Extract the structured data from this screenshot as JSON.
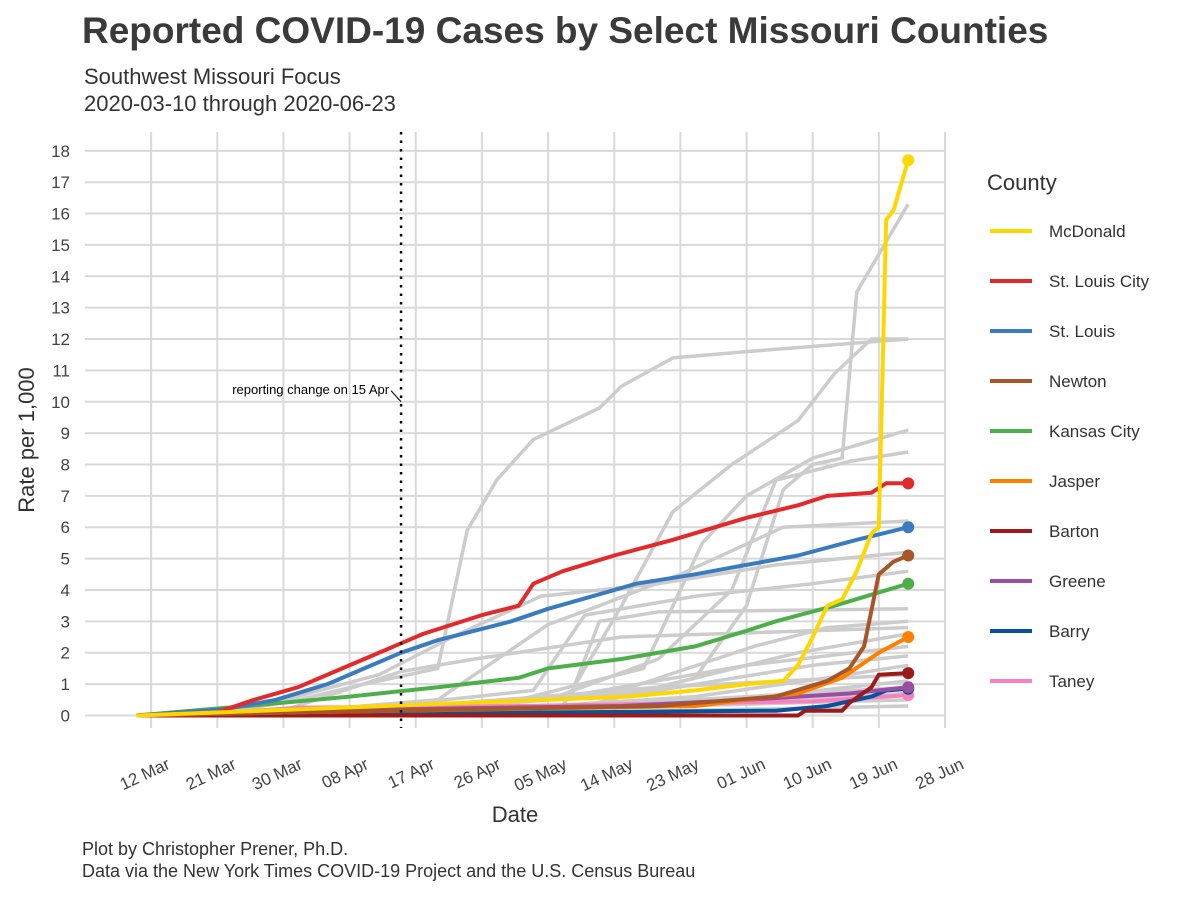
{
  "title": "Reported COVID-19 Cases by Select Missouri Counties",
  "subtitle_line1": "Southwest Missouri Focus",
  "subtitle_line2": "2020-03-10 through 2020-06-23",
  "caption_line1": "Plot by Christopher Prener, Ph.D.",
  "caption_line2": "Data via the New York Times COVID-19 Project and the U.S. Census Bureau",
  "chart_data": {
    "type": "line",
    "xlabel": "Date",
    "ylabel": "Rate per 1,000",
    "xlim": [
      "2020-03-03",
      "2020-06-28"
    ],
    "ylim": [
      -0.4,
      18.6
    ],
    "x_ticks": [
      {
        "date": "2020-03-12",
        "label": "12 Mar"
      },
      {
        "date": "2020-03-21",
        "label": "21 Mar"
      },
      {
        "date": "2020-03-30",
        "label": "30 Mar"
      },
      {
        "date": "2020-04-08",
        "label": "08 Apr"
      },
      {
        "date": "2020-04-17",
        "label": "17 Apr"
      },
      {
        "date": "2020-04-26",
        "label": "26 Apr"
      },
      {
        "date": "2020-05-05",
        "label": "05 May"
      },
      {
        "date": "2020-05-14",
        "label": "14 May"
      },
      {
        "date": "2020-05-23",
        "label": "23 May"
      },
      {
        "date": "2020-06-01",
        "label": "01 Jun"
      },
      {
        "date": "2020-06-10",
        "label": "10 Jun"
      },
      {
        "date": "2020-06-19",
        "label": "19 Jun"
      },
      {
        "date": "2020-06-28",
        "label": "28 Jun"
      }
    ],
    "y_ticks": [
      0,
      1,
      2,
      3,
      4,
      5,
      6,
      7,
      8,
      9,
      10,
      11,
      12,
      13,
      14,
      15,
      16,
      17,
      18
    ],
    "grid": true,
    "legend": {
      "title": "County",
      "position": "right"
    },
    "annotation": {
      "date": "2020-04-15",
      "label": "reporting change on 15 Apr",
      "y": 10
    },
    "background_series_color": "#cccccc",
    "background_series": [
      {
        "points": [
          [
            "2020-03-20",
            0
          ],
          [
            "2020-04-01",
            0.5
          ],
          [
            "2020-04-10",
            1.0
          ],
          [
            "2020-04-20",
            1.5
          ],
          [
            "2020-04-24",
            5.9
          ],
          [
            "2020-04-28",
            7.5
          ],
          [
            "2020-05-03",
            8.8
          ],
          [
            "2020-05-12",
            9.8
          ],
          [
            "2020-05-15",
            10.5
          ],
          [
            "2020-05-22",
            11.4
          ],
          [
            "2020-06-01",
            11.6
          ],
          [
            "2020-06-23",
            12.0
          ]
        ]
      },
      {
        "points": [
          [
            "2020-03-20",
            0
          ],
          [
            "2020-05-10",
            0.3
          ],
          [
            "2020-05-25",
            1.2
          ],
          [
            "2020-06-01",
            3.5
          ],
          [
            "2020-06-06",
            7.2
          ],
          [
            "2020-06-10",
            8.0
          ],
          [
            "2020-06-14",
            8.2
          ],
          [
            "2020-06-16",
            13.5
          ],
          [
            "2020-06-18",
            14.3
          ],
          [
            "2020-06-21",
            15.5
          ],
          [
            "2020-06-23",
            16.3
          ]
        ]
      },
      {
        "points": [
          [
            "2020-04-25",
            0
          ],
          [
            "2020-05-07",
            0.3
          ],
          [
            "2020-05-15",
            3.5
          ],
          [
            "2020-05-22",
            6.5
          ],
          [
            "2020-05-30",
            8.0
          ],
          [
            "2020-06-08",
            9.4
          ],
          [
            "2020-06-13",
            10.9
          ],
          [
            "2020-06-18",
            12.0
          ],
          [
            "2020-06-23",
            12.0
          ]
        ]
      },
      {
        "points": [
          [
            "2020-04-01",
            0
          ],
          [
            "2020-05-01",
            0.5
          ],
          [
            "2020-05-18",
            1.5
          ],
          [
            "2020-05-26",
            5.5
          ],
          [
            "2020-06-01",
            7.0
          ],
          [
            "2020-06-10",
            8.2
          ],
          [
            "2020-06-23",
            9.1
          ]
        ]
      },
      {
        "points": [
          [
            "2020-04-01",
            0
          ],
          [
            "2020-05-05",
            0.5
          ],
          [
            "2020-05-20",
            1.8
          ],
          [
            "2020-05-30",
            4.0
          ],
          [
            "2020-06-05",
            7.5
          ],
          [
            "2020-06-15",
            8.1
          ],
          [
            "2020-06-23",
            8.4
          ]
        ]
      },
      {
        "points": [
          [
            "2020-03-25",
            0
          ],
          [
            "2020-04-20",
            0.5
          ],
          [
            "2020-05-05",
            2.9
          ],
          [
            "2020-05-12",
            3.5
          ],
          [
            "2020-05-23",
            4.5
          ],
          [
            "2020-06-06",
            6.0
          ],
          [
            "2020-06-23",
            6.2
          ]
        ]
      },
      {
        "points": [
          [
            "2020-03-22",
            0
          ],
          [
            "2020-04-12",
            1.3
          ],
          [
            "2020-04-22",
            2.5
          ],
          [
            "2020-05-04",
            3.8
          ],
          [
            "2020-05-20",
            4.2
          ],
          [
            "2020-06-05",
            4.8
          ],
          [
            "2020-06-23",
            5.2
          ]
        ]
      },
      {
        "points": [
          [
            "2020-04-01",
            0
          ],
          [
            "2020-05-03",
            0.8
          ],
          [
            "2020-05-10",
            3.2
          ],
          [
            "2020-05-25",
            3.8
          ],
          [
            "2020-06-10",
            4.2
          ],
          [
            "2020-06-23",
            4.6
          ]
        ]
      },
      {
        "points": [
          [
            "2020-04-05",
            0
          ],
          [
            "2020-05-08",
            0.6
          ],
          [
            "2020-05-12",
            3.0
          ],
          [
            "2020-05-20",
            3.3
          ],
          [
            "2020-06-23",
            3.4
          ]
        ]
      },
      {
        "points": [
          [
            "2020-04-01",
            0
          ],
          [
            "2020-05-15",
            0.8
          ],
          [
            "2020-06-02",
            2.2
          ],
          [
            "2020-06-12",
            2.8
          ],
          [
            "2020-06-23",
            3.0
          ]
        ]
      },
      {
        "points": [
          [
            "2020-03-28",
            0
          ],
          [
            "2020-04-15",
            1.4
          ],
          [
            "2020-04-25",
            1.8
          ],
          [
            "2020-05-15",
            2.5
          ],
          [
            "2020-06-23",
            2.8
          ]
        ]
      },
      {
        "points": [
          [
            "2020-04-10",
            0
          ],
          [
            "2020-05-20",
            0.9
          ],
          [
            "2020-06-08",
            2.0
          ],
          [
            "2020-06-23",
            2.6
          ]
        ]
      },
      {
        "points": [
          [
            "2020-04-05",
            0
          ],
          [
            "2020-05-10",
            0.7
          ],
          [
            "2020-06-01",
            1.6
          ],
          [
            "2020-06-23",
            2.2
          ]
        ]
      },
      {
        "points": [
          [
            "2020-04-10",
            0
          ],
          [
            "2020-05-20",
            0.8
          ],
          [
            "2020-06-10",
            1.6
          ],
          [
            "2020-06-23",
            1.9
          ]
        ]
      },
      {
        "points": [
          [
            "2020-04-15",
            0
          ],
          [
            "2020-05-25",
            0.6
          ],
          [
            "2020-06-12",
            1.2
          ],
          [
            "2020-06-23",
            1.6
          ]
        ]
      },
      {
        "points": [
          [
            "2020-03-25",
            0
          ],
          [
            "2020-04-25",
            0.4
          ],
          [
            "2020-05-20",
            0.9
          ],
          [
            "2020-06-23",
            1.3
          ]
        ]
      },
      {
        "points": [
          [
            "2020-04-20",
            0
          ],
          [
            "2020-05-30",
            0.5
          ],
          [
            "2020-06-23",
            1.1
          ]
        ]
      },
      {
        "points": [
          [
            "2020-04-01",
            0
          ],
          [
            "2020-05-10",
            0.3
          ],
          [
            "2020-06-23",
            0.9
          ]
        ]
      },
      {
        "points": [
          [
            "2020-04-10",
            0
          ],
          [
            "2020-06-23",
            0.7
          ]
        ]
      },
      {
        "points": [
          [
            "2020-04-05",
            0
          ],
          [
            "2020-06-23",
            0.5
          ]
        ]
      },
      {
        "points": [
          [
            "2020-04-20",
            0
          ],
          [
            "2020-06-23",
            0.3
          ]
        ]
      }
    ],
    "series": [
      {
        "name": "McDonald",
        "color": "#ffd700",
        "points": [
          [
            "2020-03-10",
            0
          ],
          [
            "2020-05-16",
            0.6
          ],
          [
            "2020-05-25",
            0.8
          ],
          [
            "2020-06-01",
            1.0
          ],
          [
            "2020-06-06",
            1.1
          ],
          [
            "2020-06-08",
            1.6
          ],
          [
            "2020-06-10",
            2.5
          ],
          [
            "2020-06-12",
            3.5
          ],
          [
            "2020-06-14",
            3.7
          ],
          [
            "2020-06-16",
            4.6
          ],
          [
            "2020-06-17",
            5.2
          ],
          [
            "2020-06-18",
            5.8
          ],
          [
            "2020-06-19",
            6.0
          ],
          [
            "2020-06-20",
            15.8
          ],
          [
            "2020-06-21",
            16.1
          ],
          [
            "2020-06-23",
            17.7
          ]
        ]
      },
      {
        "name": "St. Louis City",
        "color": "#e32a2a",
        "points": [
          [
            "2020-03-10",
            0
          ],
          [
            "2020-03-21",
            0.1
          ],
          [
            "2020-03-26",
            0.5
          ],
          [
            "2020-04-01",
            0.9
          ],
          [
            "2020-04-06",
            1.4
          ],
          [
            "2020-04-11",
            1.9
          ],
          [
            "2020-04-14",
            2.2
          ],
          [
            "2020-04-18",
            2.6
          ],
          [
            "2020-04-26",
            3.2
          ],
          [
            "2020-05-01",
            3.5
          ],
          [
            "2020-05-03",
            4.2
          ],
          [
            "2020-05-07",
            4.6
          ],
          [
            "2020-05-14",
            5.1
          ],
          [
            "2020-05-22",
            5.6
          ],
          [
            "2020-06-01",
            6.3
          ],
          [
            "2020-06-08",
            6.7
          ],
          [
            "2020-06-12",
            7.0
          ],
          [
            "2020-06-18",
            7.1
          ],
          [
            "2020-06-20",
            7.4
          ],
          [
            "2020-06-23",
            7.4
          ]
        ]
      },
      {
        "name": "St. Louis",
        "color": "#3a7bbf",
        "points": [
          [
            "2020-03-10",
            0
          ],
          [
            "2020-03-22",
            0.2
          ],
          [
            "2020-03-29",
            0.5
          ],
          [
            "2020-04-05",
            1.0
          ],
          [
            "2020-04-10",
            1.5
          ],
          [
            "2020-04-15",
            2.0
          ],
          [
            "2020-04-20",
            2.4
          ],
          [
            "2020-04-30",
            3.0
          ],
          [
            "2020-05-05",
            3.4
          ],
          [
            "2020-05-11",
            3.8
          ],
          [
            "2020-05-17",
            4.2
          ],
          [
            "2020-05-25",
            4.5
          ],
          [
            "2020-06-01",
            4.8
          ],
          [
            "2020-06-08",
            5.1
          ],
          [
            "2020-06-16",
            5.6
          ],
          [
            "2020-06-23",
            6.0
          ]
        ]
      },
      {
        "name": "Newton",
        "color": "#a65628",
        "points": [
          [
            "2020-03-10",
            0
          ],
          [
            "2020-04-01",
            0.1
          ],
          [
            "2020-05-20",
            0.3
          ],
          [
            "2020-06-05",
            0.6
          ],
          [
            "2020-06-12",
            1.1
          ],
          [
            "2020-06-15",
            1.5
          ],
          [
            "2020-06-17",
            2.2
          ],
          [
            "2020-06-19",
            4.5
          ],
          [
            "2020-06-21",
            4.9
          ],
          [
            "2020-06-23",
            5.1
          ]
        ]
      },
      {
        "name": "Kansas City",
        "color": "#4daf4a",
        "points": [
          [
            "2020-03-10",
            0
          ],
          [
            "2020-03-25",
            0.3
          ],
          [
            "2020-04-08",
            0.6
          ],
          [
            "2020-04-20",
            0.9
          ],
          [
            "2020-05-01",
            1.2
          ],
          [
            "2020-05-05",
            1.5
          ],
          [
            "2020-05-15",
            1.8
          ],
          [
            "2020-05-25",
            2.2
          ],
          [
            "2020-06-01",
            2.7
          ],
          [
            "2020-06-05",
            3.0
          ],
          [
            "2020-06-13",
            3.5
          ],
          [
            "2020-06-23",
            4.2
          ]
        ]
      },
      {
        "name": "Jasper",
        "color": "#ff7f00",
        "points": [
          [
            "2020-03-10",
            0
          ],
          [
            "2020-04-01",
            0.1
          ],
          [
            "2020-05-25",
            0.3
          ],
          [
            "2020-06-08",
            0.7
          ],
          [
            "2020-06-14",
            1.2
          ],
          [
            "2020-06-19",
            2.0
          ],
          [
            "2020-06-23",
            2.5
          ]
        ]
      },
      {
        "name": "Barton",
        "color": "#9e1a1a",
        "points": [
          [
            "2020-03-10",
            0
          ],
          [
            "2020-06-08",
            0
          ],
          [
            "2020-06-09",
            0.15
          ],
          [
            "2020-06-14",
            0.15
          ],
          [
            "2020-06-15",
            0.4
          ],
          [
            "2020-06-18",
            0.9
          ],
          [
            "2020-06-19",
            1.3
          ],
          [
            "2020-06-23",
            1.35
          ]
        ]
      },
      {
        "name": "Greene",
        "color": "#984ea3",
        "points": [
          [
            "2020-03-10",
            0
          ],
          [
            "2020-03-25",
            0.1
          ],
          [
            "2020-04-15",
            0.2
          ],
          [
            "2020-05-15",
            0.3
          ],
          [
            "2020-06-01",
            0.5
          ],
          [
            "2020-06-15",
            0.7
          ],
          [
            "2020-06-23",
            0.9
          ]
        ]
      },
      {
        "name": "Barry",
        "color": "#08519c",
        "points": [
          [
            "2020-03-10",
            0
          ],
          [
            "2020-04-10",
            0.05
          ],
          [
            "2020-06-05",
            0.15
          ],
          [
            "2020-06-12",
            0.3
          ],
          [
            "2020-06-18",
            0.6
          ],
          [
            "2020-06-20",
            0.8
          ],
          [
            "2020-06-23",
            0.85
          ]
        ]
      },
      {
        "name": "Taney",
        "color": "#f781bf",
        "points": [
          [
            "2020-03-10",
            0
          ],
          [
            "2020-03-20",
            0.05
          ],
          [
            "2020-04-01",
            0.25
          ],
          [
            "2020-05-01",
            0.3
          ],
          [
            "2020-06-10",
            0.45
          ],
          [
            "2020-06-23",
            0.65
          ]
        ]
      }
    ]
  }
}
